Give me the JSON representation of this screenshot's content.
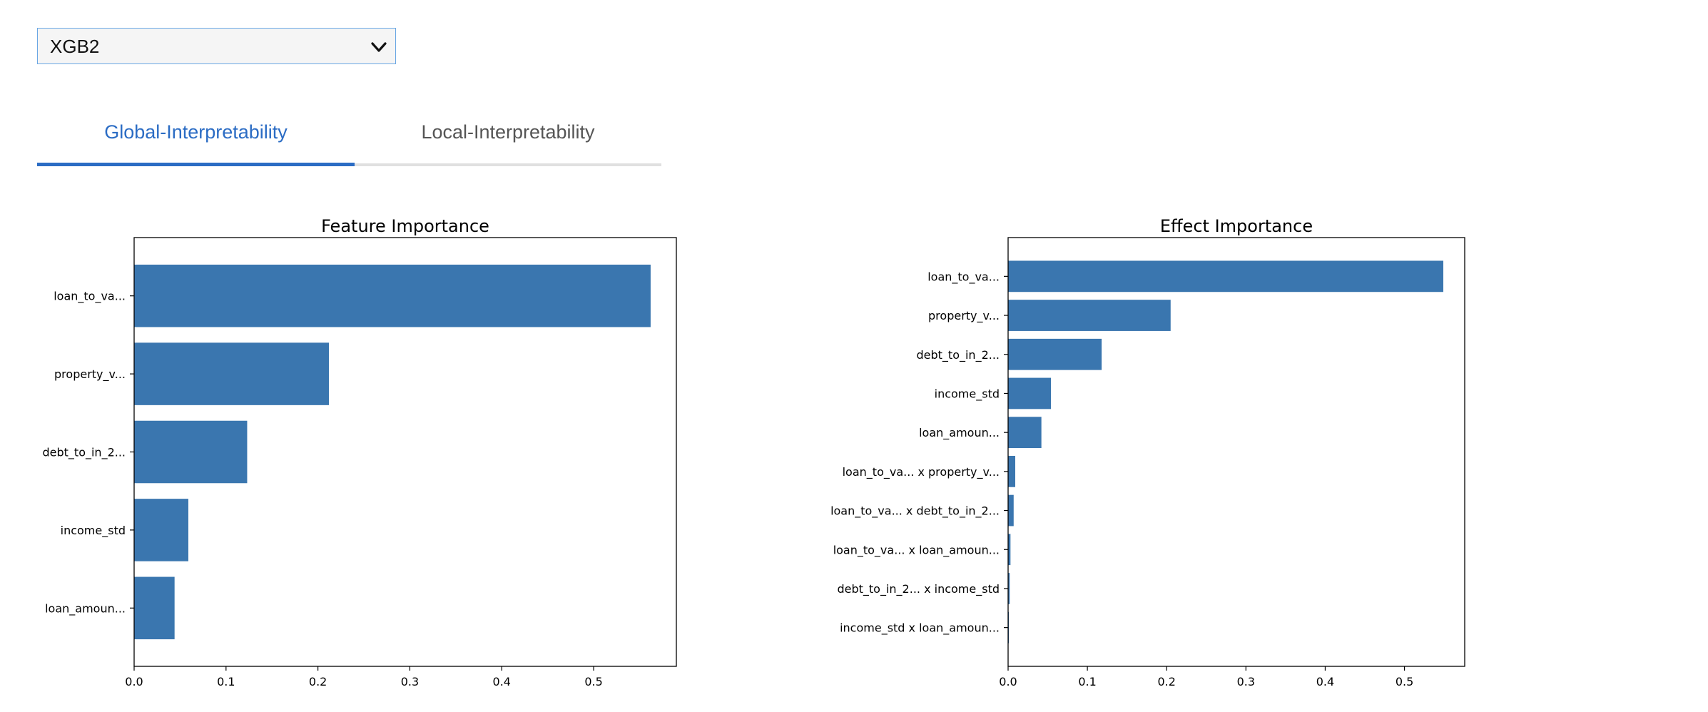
{
  "model_selector": {
    "selected": "XGB2",
    "icon": "chevron-down-icon"
  },
  "tabs": [
    {
      "label": "Global-Interpretability",
      "active": true
    },
    {
      "label": "Local-Interpretability",
      "active": false
    }
  ],
  "colors": {
    "bar": "#3a76af",
    "accent": "#2b6cc4",
    "selector_border": "#6aa7e4"
  },
  "chart_data": [
    {
      "type": "bar",
      "orientation": "horizontal",
      "title": "Feature Importance",
      "categories": [
        "loan_to_va...",
        "property_v...",
        "debt_to_in_2...",
        "income_std",
        "loan_amoun..."
      ],
      "values": [
        0.562,
        0.212,
        0.123,
        0.059,
        0.044
      ],
      "xlim": [
        0,
        0.59
      ],
      "xticks": [
        "0.0",
        "0.1",
        "0.2",
        "0.3",
        "0.4",
        "0.5"
      ],
      "grid": false
    },
    {
      "type": "bar",
      "orientation": "horizontal",
      "title": "Effect Importance",
      "categories": [
        "loan_to_va...",
        "property_v...",
        "debt_to_in_2...",
        "income_std",
        "loan_amoun...",
        "loan_to_va... x property_v...",
        "loan_to_va... x debt_to_in_2...",
        "loan_to_va... x loan_amoun...",
        "debt_to_in_2... x income_std",
        "income_std x loan_amoun..."
      ],
      "values": [
        0.549,
        0.205,
        0.118,
        0.054,
        0.042,
        0.009,
        0.007,
        0.003,
        0.002,
        0.001
      ],
      "xlim": [
        0,
        0.576
      ],
      "xticks": [
        "0.0",
        "0.1",
        "0.2",
        "0.3",
        "0.4",
        "0.5"
      ],
      "grid": false
    }
  ]
}
